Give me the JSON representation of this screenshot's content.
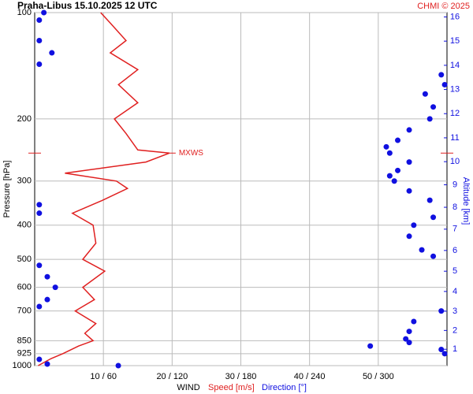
{
  "chart_data": {
    "type": "profile",
    "title": "Praha-Libus   15.10.2025 12 UTC",
    "credit": "CHMI © 2025",
    "ylabel": "Pressure [hPa]",
    "y2label": "Altitude [km]",
    "xlabel": "WIND",
    "annotation": "MXWS",
    "ylim": [
      100,
      1000
    ],
    "log_y": true,
    "yticks": [
      100,
      200,
      300,
      400,
      500,
      600,
      700,
      850,
      925,
      1000
    ],
    "xlim": [
      0,
      60
    ],
    "x2lim": [
      0,
      360
    ],
    "xticks": [
      {
        "value": 10,
        "label": "10 / 60"
      },
      {
        "value": 20,
        "label": "20 / 120"
      },
      {
        "value": 30,
        "label": "30 / 180"
      },
      {
        "value": 40,
        "label": "40 / 240"
      },
      {
        "value": 50,
        "label": "50 / 300"
      }
    ],
    "y2ticks": [
      1,
      2,
      3,
      4,
      5,
      6,
      7,
      8,
      9,
      10,
      11,
      12,
      13,
      14,
      15,
      16
    ],
    "grid": true,
    "series": [
      {
        "name": "Speed [m/s]",
        "color": "#e02020",
        "pressure": [
          1000,
          955,
          925,
          880,
          850,
          810,
          760,
          700,
          650,
          600,
          540,
          500,
          450,
          400,
          370,
          340,
          315,
          300,
          285,
          265,
          250,
          245,
          220,
          200,
          180,
          160,
          145,
          130,
          120,
          107,
          100
        ],
        "values": [
          0.5,
          2.4,
          4.1,
          6.4,
          8.5,
          7.3,
          8.9,
          5.9,
          8.7,
          7,
          10.2,
          7,
          8.9,
          8.5,
          5.5,
          9.9,
          13.5,
          11.9,
          4.4,
          16.2,
          19.6,
          15,
          13.3,
          11.6,
          15,
          12.2,
          15,
          11,
          13.3,
          11,
          9.6
        ]
      },
      {
        "name": "Direction [°]",
        "color": "#1010e0",
        "axis": "x2",
        "pressure": [
          1000,
          990,
          960,
          925,
          900,
          880,
          860,
          840,
          800,
          750,
          700,
          680,
          650,
          600,
          560,
          520,
          490,
          470,
          430,
          400,
          380,
          370,
          350,
          340,
          320,
          300,
          290,
          280,
          265,
          250,
          240,
          230,
          215,
          200,
          185,
          170,
          160,
          150,
          140,
          130,
          120,
          105,
          100
        ],
        "values": [
          73,
          11,
          4,
          358,
          355,
          293,
          327,
          324,
          327,
          331,
          355,
          4,
          11,
          18,
          11,
          4,
          348,
          338,
          327,
          331,
          348,
          4,
          4,
          345,
          327,
          314,
          310,
          317,
          327,
          310,
          307,
          317,
          327,
          345,
          348,
          341,
          358,
          355,
          4,
          15,
          4,
          4,
          8
        ]
      }
    ]
  }
}
